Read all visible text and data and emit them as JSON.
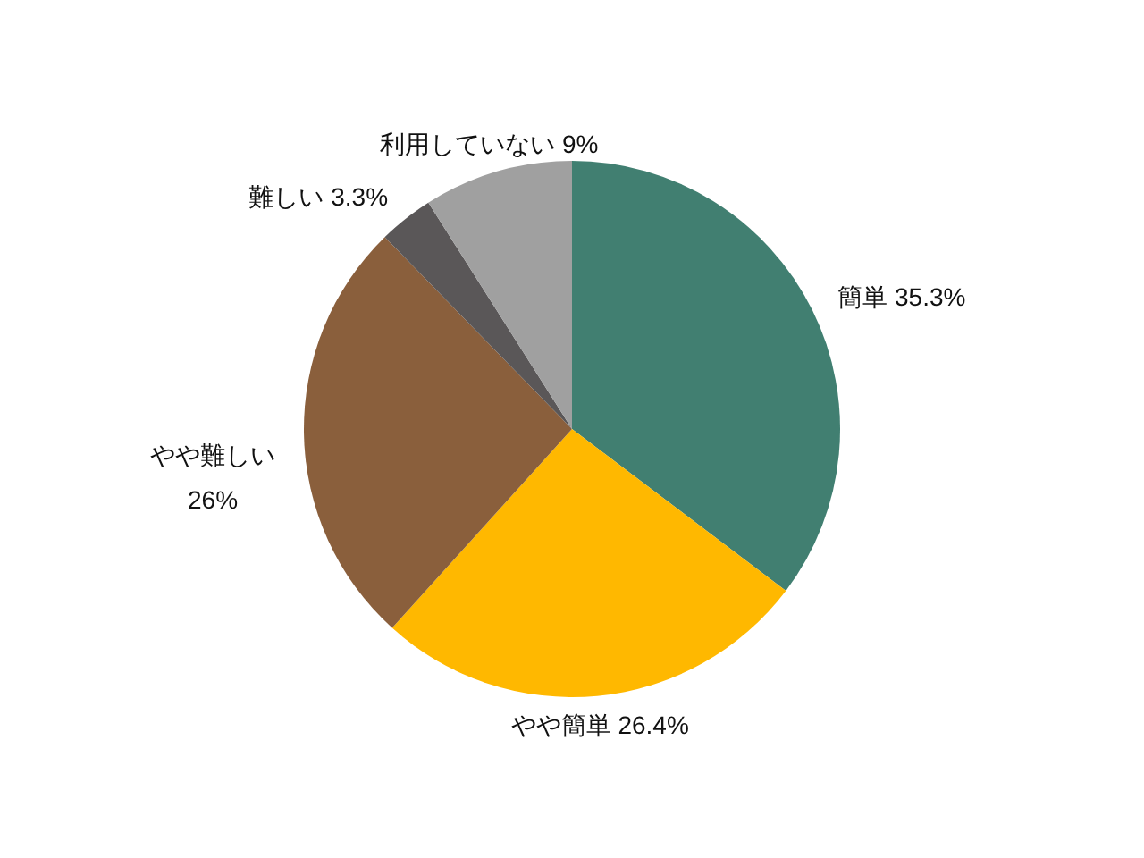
{
  "chart_data": {
    "type": "pie",
    "categories": [
      "簡単",
      "やや簡単",
      "やや難しい",
      "難しい",
      "利用していない"
    ],
    "values": [
      35.3,
      26.4,
      26,
      3.3,
      9
    ],
    "colors": [
      "#417f71",
      "#ffb800",
      "#8a5f3c",
      "#5a5758",
      "#a0a0a0"
    ],
    "value_labels": [
      "35.3%",
      "26.4%",
      "26%",
      "3.3%",
      "9%"
    ]
  }
}
